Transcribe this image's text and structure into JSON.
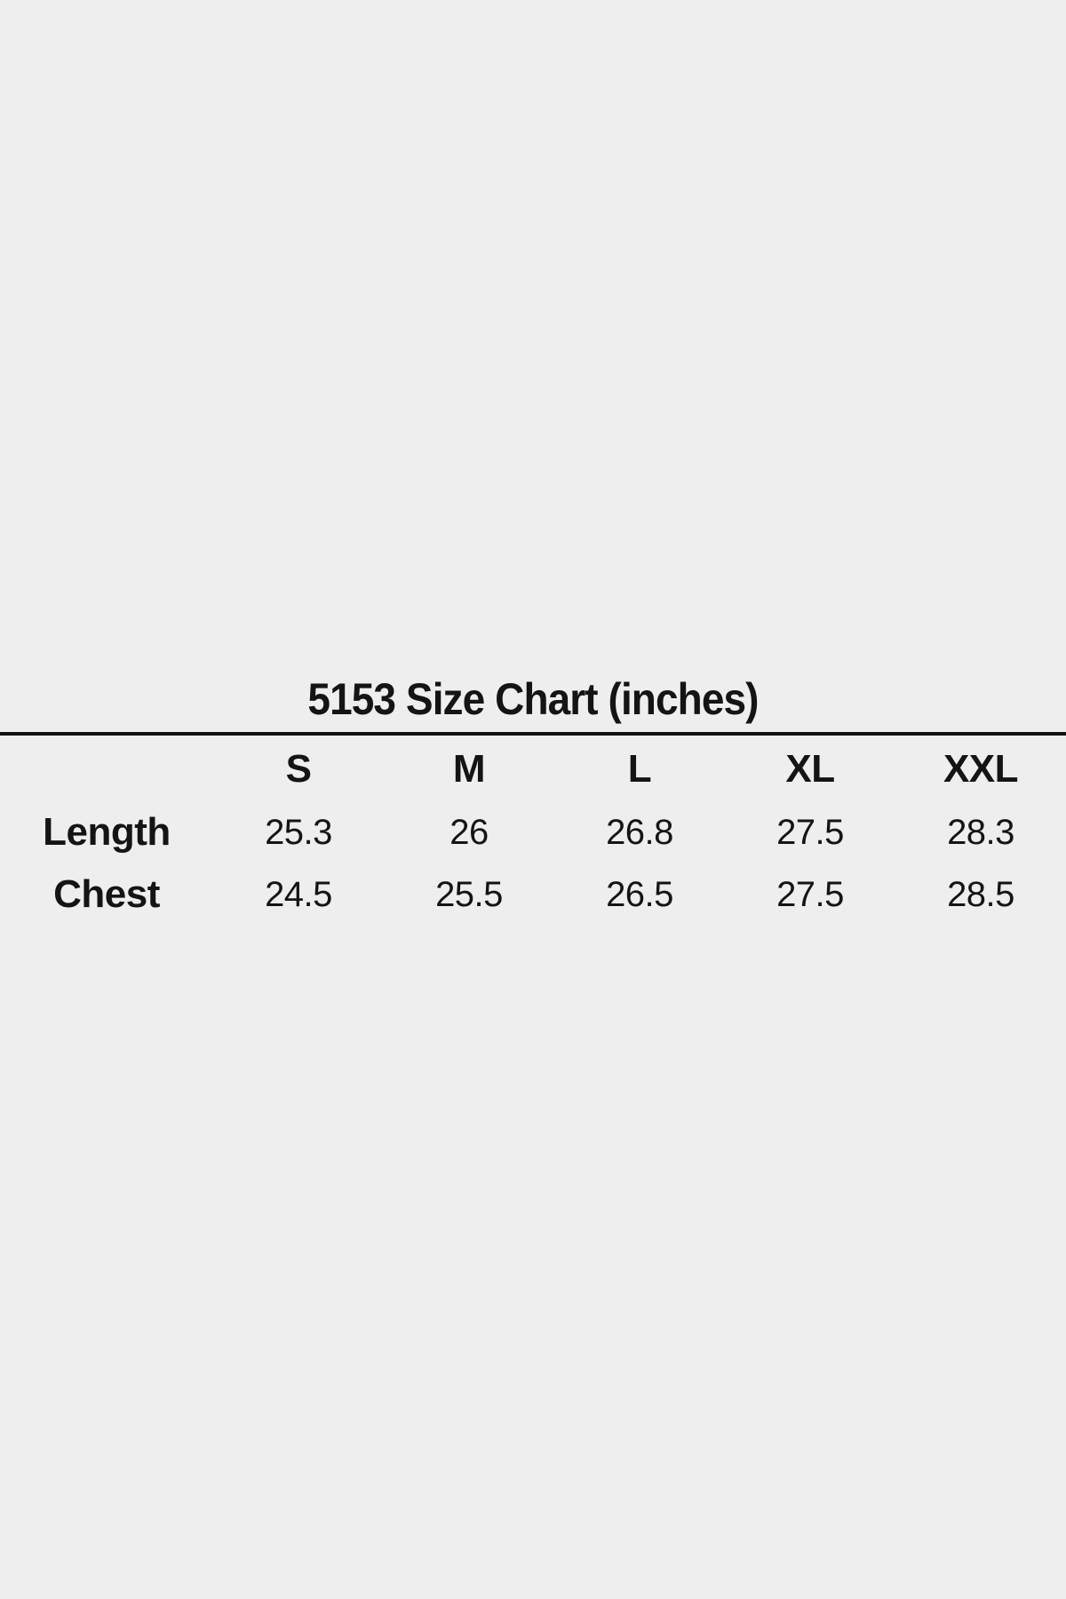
{
  "page": {
    "background_color": "#eeeeee",
    "text_color": "#141414",
    "divider_color": "#111111"
  },
  "chart_data": {
    "type": "table",
    "title": "5153 Size Chart (inches)",
    "columns": [
      "",
      "S",
      "M",
      "L",
      "XL",
      "XXL"
    ],
    "rows": [
      {
        "label": "Length",
        "values": [
          "25.3",
          "26",
          "26.8",
          "27.5",
          "28.3"
        ]
      },
      {
        "label": "Chest",
        "values": [
          "24.5",
          "25.5",
          "26.5",
          "27.5",
          "28.5"
        ]
      }
    ],
    "layout": {
      "title_position": "top-center",
      "title_rule": "full-width horizontal line under title",
      "grid": "off",
      "units": "inches"
    }
  }
}
